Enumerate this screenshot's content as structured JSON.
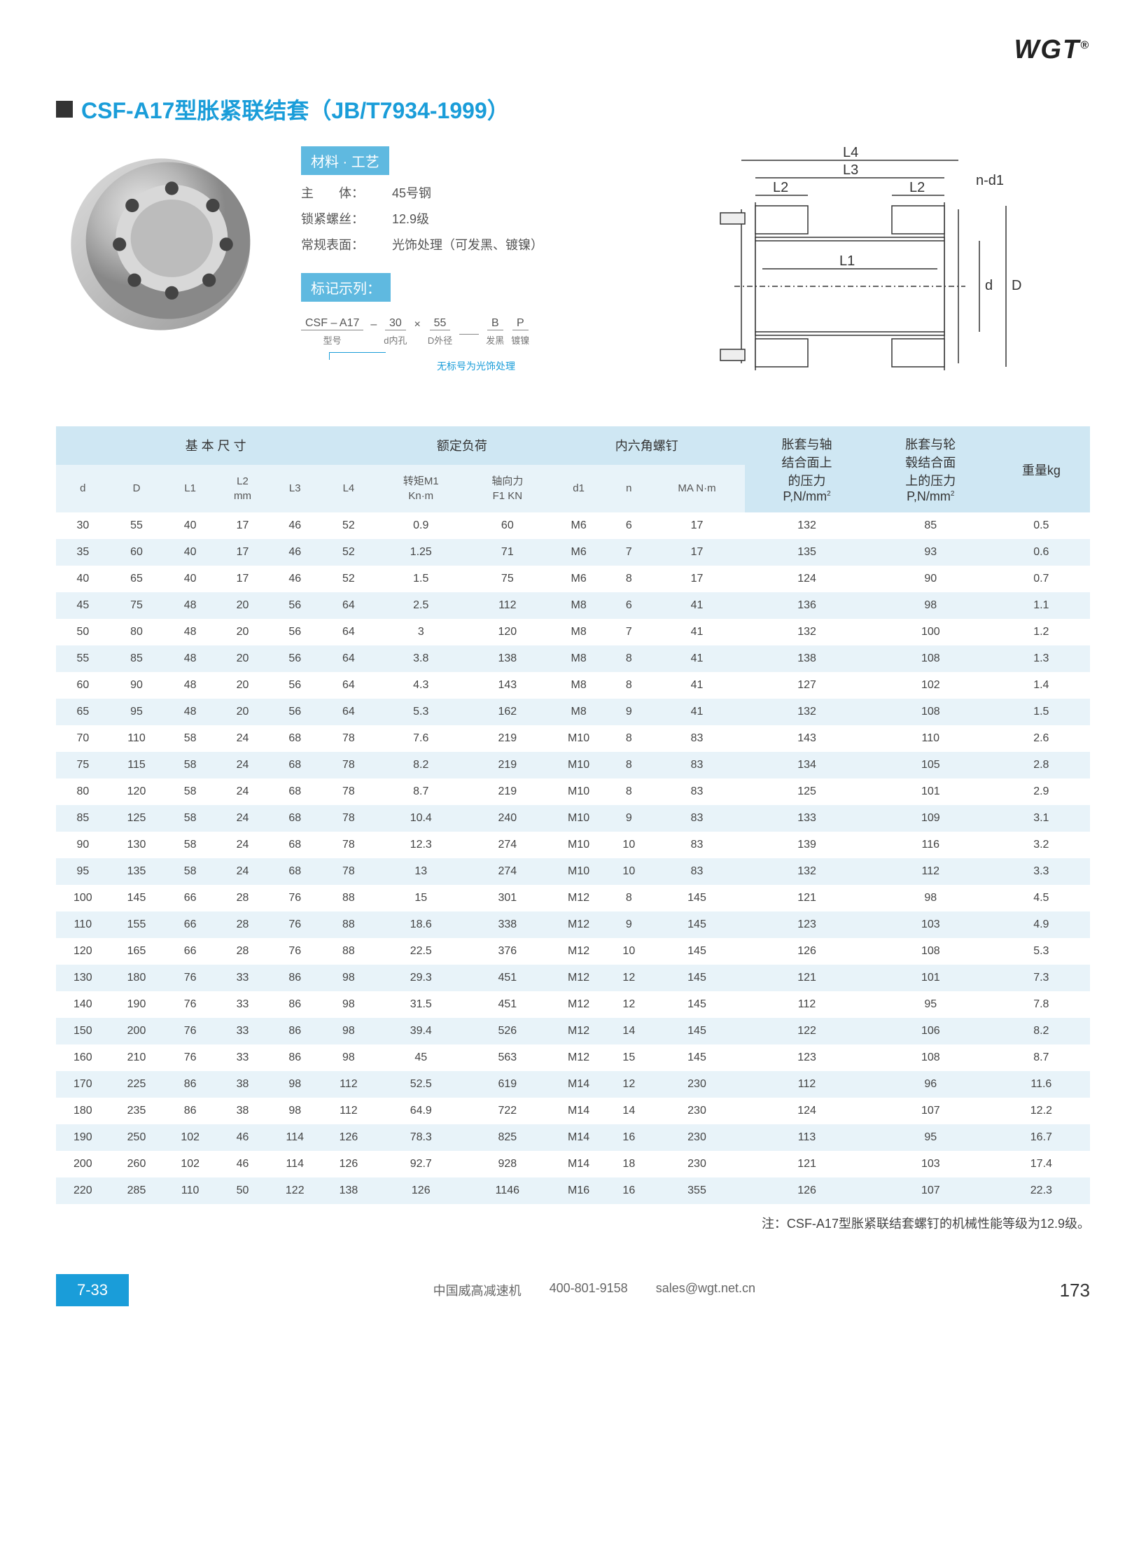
{
  "logo": "WGT",
  "title": "CSF-A17型胀紧联结套（JB/T7934-1999）",
  "material": {
    "label": "材料 · 工艺",
    "rows": [
      {
        "k": "主　　体：",
        "v": "45号钢"
      },
      {
        "k": "锁紧螺丝：",
        "v": "12.9级"
      },
      {
        "k": "常规表面：",
        "v": "光饰处理（可发黑、镀镍）"
      }
    ]
  },
  "marking": {
    "label": "标记示列：",
    "items": [
      {
        "val": "CSF – A17",
        "lbl": "型号"
      },
      {
        "sep": "–"
      },
      {
        "val": "30",
        "lbl": "d内孔"
      },
      {
        "sep": "×"
      },
      {
        "val": "55",
        "lbl": "D外径"
      },
      {
        "val": "　",
        "lbl": ""
      },
      {
        "val": "B",
        "lbl": "发黑"
      },
      {
        "val": "P",
        "lbl": "镀镍"
      }
    ],
    "note": "无标号为光饰处理"
  },
  "diagram_labels": [
    "L4",
    "L3",
    "L2",
    "L2",
    "L1",
    "n-d1",
    "d",
    "D"
  ],
  "table": {
    "group_headers": [
      "基 本 尺 寸",
      "额定负荷",
      "内六角螺钉",
      "胀套与轴\n结合面上\n的压力\nP,N/mm²",
      "胀套与轮\n毂结合面\n上的压力\nP,N/mm²",
      "重量kg"
    ],
    "sub_headers": [
      "d",
      "D",
      "L1",
      "L2\nmm",
      "L3",
      "L4",
      "转矩M1\nKn·m",
      "轴向力\nF1 KN",
      "d1",
      "n",
      "MA N·m"
    ],
    "rows": [
      [
        "30",
        "55",
        "40",
        "17",
        "46",
        "52",
        "0.9",
        "60",
        "M6",
        "6",
        "17",
        "132",
        "85",
        "0.5"
      ],
      [
        "35",
        "60",
        "40",
        "17",
        "46",
        "52",
        "1.25",
        "71",
        "M6",
        "7",
        "17",
        "135",
        "93",
        "0.6"
      ],
      [
        "40",
        "65",
        "40",
        "17",
        "46",
        "52",
        "1.5",
        "75",
        "M6",
        "8",
        "17",
        "124",
        "90",
        "0.7"
      ],
      [
        "45",
        "75",
        "48",
        "20",
        "56",
        "64",
        "2.5",
        "112",
        "M8",
        "6",
        "41",
        "136",
        "98",
        "1.1"
      ],
      [
        "50",
        "80",
        "48",
        "20",
        "56",
        "64",
        "3",
        "120",
        "M8",
        "7",
        "41",
        "132",
        "100",
        "1.2"
      ],
      [
        "55",
        "85",
        "48",
        "20",
        "56",
        "64",
        "3.8",
        "138",
        "M8",
        "8",
        "41",
        "138",
        "108",
        "1.3"
      ],
      [
        "60",
        "90",
        "48",
        "20",
        "56",
        "64",
        "4.3",
        "143",
        "M8",
        "8",
        "41",
        "127",
        "102",
        "1.4"
      ],
      [
        "65",
        "95",
        "48",
        "20",
        "56",
        "64",
        "5.3",
        "162",
        "M8",
        "9",
        "41",
        "132",
        "108",
        "1.5"
      ],
      [
        "70",
        "110",
        "58",
        "24",
        "68",
        "78",
        "7.6",
        "219",
        "M10",
        "8",
        "83",
        "143",
        "110",
        "2.6"
      ],
      [
        "75",
        "115",
        "58",
        "24",
        "68",
        "78",
        "8.2",
        "219",
        "M10",
        "8",
        "83",
        "134",
        "105",
        "2.8"
      ],
      [
        "80",
        "120",
        "58",
        "24",
        "68",
        "78",
        "8.7",
        "219",
        "M10",
        "8",
        "83",
        "125",
        "101",
        "2.9"
      ],
      [
        "85",
        "125",
        "58",
        "24",
        "68",
        "78",
        "10.4",
        "240",
        "M10",
        "9",
        "83",
        "133",
        "109",
        "3.1"
      ],
      [
        "90",
        "130",
        "58",
        "24",
        "68",
        "78",
        "12.3",
        "274",
        "M10",
        "10",
        "83",
        "139",
        "116",
        "3.2"
      ],
      [
        "95",
        "135",
        "58",
        "24",
        "68",
        "78",
        "13",
        "274",
        "M10",
        "10",
        "83",
        "132",
        "112",
        "3.3"
      ],
      [
        "100",
        "145",
        "66",
        "28",
        "76",
        "88",
        "15",
        "301",
        "M12",
        "8",
        "145",
        "121",
        "98",
        "4.5"
      ],
      [
        "110",
        "155",
        "66",
        "28",
        "76",
        "88",
        "18.6",
        "338",
        "M12",
        "9",
        "145",
        "123",
        "103",
        "4.9"
      ],
      [
        "120",
        "165",
        "66",
        "28",
        "76",
        "88",
        "22.5",
        "376",
        "M12",
        "10",
        "145",
        "126",
        "108",
        "5.3"
      ],
      [
        "130",
        "180",
        "76",
        "33",
        "86",
        "98",
        "29.3",
        "451",
        "M12",
        "12",
        "145",
        "121",
        "101",
        "7.3"
      ],
      [
        "140",
        "190",
        "76",
        "33",
        "86",
        "98",
        "31.5",
        "451",
        "M12",
        "12",
        "145",
        "112",
        "95",
        "7.8"
      ],
      [
        "150",
        "200",
        "76",
        "33",
        "86",
        "98",
        "39.4",
        "526",
        "M12",
        "14",
        "145",
        "122",
        "106",
        "8.2"
      ],
      [
        "160",
        "210",
        "76",
        "33",
        "86",
        "98",
        "45",
        "563",
        "M12",
        "15",
        "145",
        "123",
        "108",
        "8.7"
      ],
      [
        "170",
        "225",
        "86",
        "38",
        "98",
        "112",
        "52.5",
        "619",
        "M14",
        "12",
        "230",
        "112",
        "96",
        "11.6"
      ],
      [
        "180",
        "235",
        "86",
        "38",
        "98",
        "112",
        "64.9",
        "722",
        "M14",
        "14",
        "230",
        "124",
        "107",
        "12.2"
      ],
      [
        "190",
        "250",
        "102",
        "46",
        "114",
        "126",
        "78.3",
        "825",
        "M14",
        "16",
        "230",
        "113",
        "95",
        "16.7"
      ],
      [
        "200",
        "260",
        "102",
        "46",
        "114",
        "126",
        "92.7",
        "928",
        "M14",
        "18",
        "230",
        "121",
        "103",
        "17.4"
      ],
      [
        "220",
        "285",
        "110",
        "50",
        "122",
        "138",
        "126",
        "1146",
        "M16",
        "16",
        "355",
        "126",
        "107",
        "22.3"
      ]
    ]
  },
  "table_note": "注：CSF-A17型胀紧联结套螺钉的机械性能等级为12.9级。",
  "footer": {
    "section": "7-33",
    "company": "中国威高减速机",
    "phone": "400-801-9158",
    "email": "sales@wgt.net.cn",
    "page": "173"
  },
  "colors": {
    "accent": "#1a9dd9",
    "label_bg": "#5fb9e0",
    "hdr1": "#cfe7f3",
    "hdr2": "#e8f3f9"
  }
}
